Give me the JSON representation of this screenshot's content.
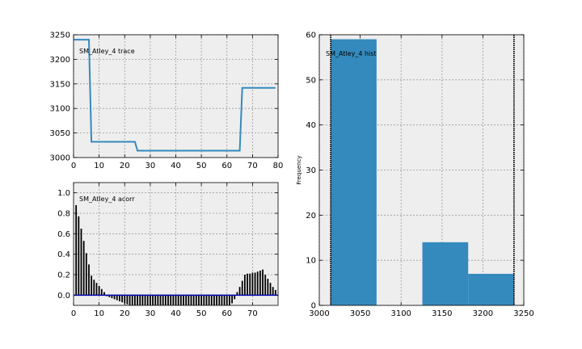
{
  "chart_data": [
    {
      "type": "line",
      "title": "SM_Atley_4 trace",
      "xlim": [
        0,
        80
      ],
      "ylim": [
        3000,
        3250
      ],
      "xticks": [
        "0",
        "10",
        "20",
        "30",
        "40",
        "50",
        "60",
        "70",
        "80"
      ],
      "yticks": [
        "3000",
        "3050",
        "3100",
        "3150",
        "3200",
        "3250"
      ],
      "color": "#348abd",
      "grid": true,
      "x": [
        0,
        6,
        7,
        24,
        25,
        65,
        66,
        79
      ],
      "y": [
        3240,
        3240,
        3032,
        3032,
        3014,
        3014,
        3142,
        3142
      ]
    },
    {
      "type": "bar",
      "title": "SM_Atley_4 acorr",
      "xlim": [
        0,
        80
      ],
      "ylim": [
        -0.1,
        1.1
      ],
      "xticks": [
        "0",
        "10",
        "20",
        "30",
        "40",
        "50",
        "60",
        "70"
      ],
      "yticks": [
        "0.0",
        "0.2",
        "0.4",
        "0.6",
        "0.8",
        "1.0"
      ],
      "grid": true,
      "bar_color": "#000000",
      "baseline_color": "#0000aa",
      "lags": [
        1,
        2,
        3,
        4,
        5,
        6,
        7,
        8,
        9,
        10,
        11,
        12,
        13,
        14,
        15,
        16,
        17,
        18,
        19,
        20,
        21,
        22,
        23,
        24,
        25,
        26,
        27,
        28,
        29,
        30,
        31,
        32,
        33,
        34,
        35,
        36,
        37,
        38,
        39,
        40,
        41,
        42,
        43,
        44,
        45,
        46,
        47,
        48,
        49,
        50,
        51,
        52,
        53,
        54,
        55,
        56,
        57,
        58,
        59,
        60,
        61,
        62,
        63,
        64,
        65,
        66,
        67,
        68,
        69,
        70,
        71,
        72,
        73,
        74,
        75,
        76,
        77,
        78,
        79
      ],
      "values": [
        0.88,
        0.77,
        0.65,
        0.53,
        0.41,
        0.3,
        0.19,
        0.15,
        0.12,
        0.09,
        0.06,
        0.03,
        -0.01,
        -0.02,
        -0.03,
        -0.04,
        -0.05,
        -0.06,
        -0.07,
        -0.08,
        -0.09,
        -0.1,
        -0.1,
        -0.1,
        -0.1,
        -0.1,
        -0.1,
        -0.1,
        -0.1,
        -0.1,
        -0.1,
        -0.1,
        -0.1,
        -0.1,
        -0.1,
        -0.1,
        -0.1,
        -0.1,
        -0.1,
        -0.1,
        -0.1,
        -0.1,
        -0.1,
        -0.1,
        -0.1,
        -0.1,
        -0.1,
        -0.1,
        -0.1,
        -0.1,
        -0.1,
        -0.1,
        -0.1,
        -0.1,
        -0.1,
        -0.1,
        -0.1,
        -0.1,
        -0.1,
        -0.1,
        -0.1,
        -0.08,
        -0.04,
        0.03,
        0.08,
        0.14,
        0.2,
        0.21,
        0.21,
        0.22,
        0.22,
        0.23,
        0.24,
        0.25,
        0.2,
        0.16,
        0.12,
        0.08,
        0.05
      ]
    },
    {
      "type": "bar",
      "title": "SM_Atley_4 hist",
      "xlabel": "",
      "ylabel": "Frequency",
      "xlim": [
        3000,
        3250
      ],
      "ylim": [
        0,
        60
      ],
      "xticks": [
        "3000",
        "3050",
        "3100",
        "3150",
        "3200",
        "3250"
      ],
      "yticks": [
        "0",
        "10",
        "20",
        "30",
        "40",
        "50",
        "60"
      ],
      "grid": true,
      "color": "#348abd",
      "bins": [
        [
          3014,
          3070,
          59
        ],
        [
          3070,
          3126,
          0
        ],
        [
          3126,
          3182,
          14
        ],
        [
          3182,
          3238,
          7
        ]
      ],
      "rug": [
        3014,
        3238
      ]
    }
  ]
}
